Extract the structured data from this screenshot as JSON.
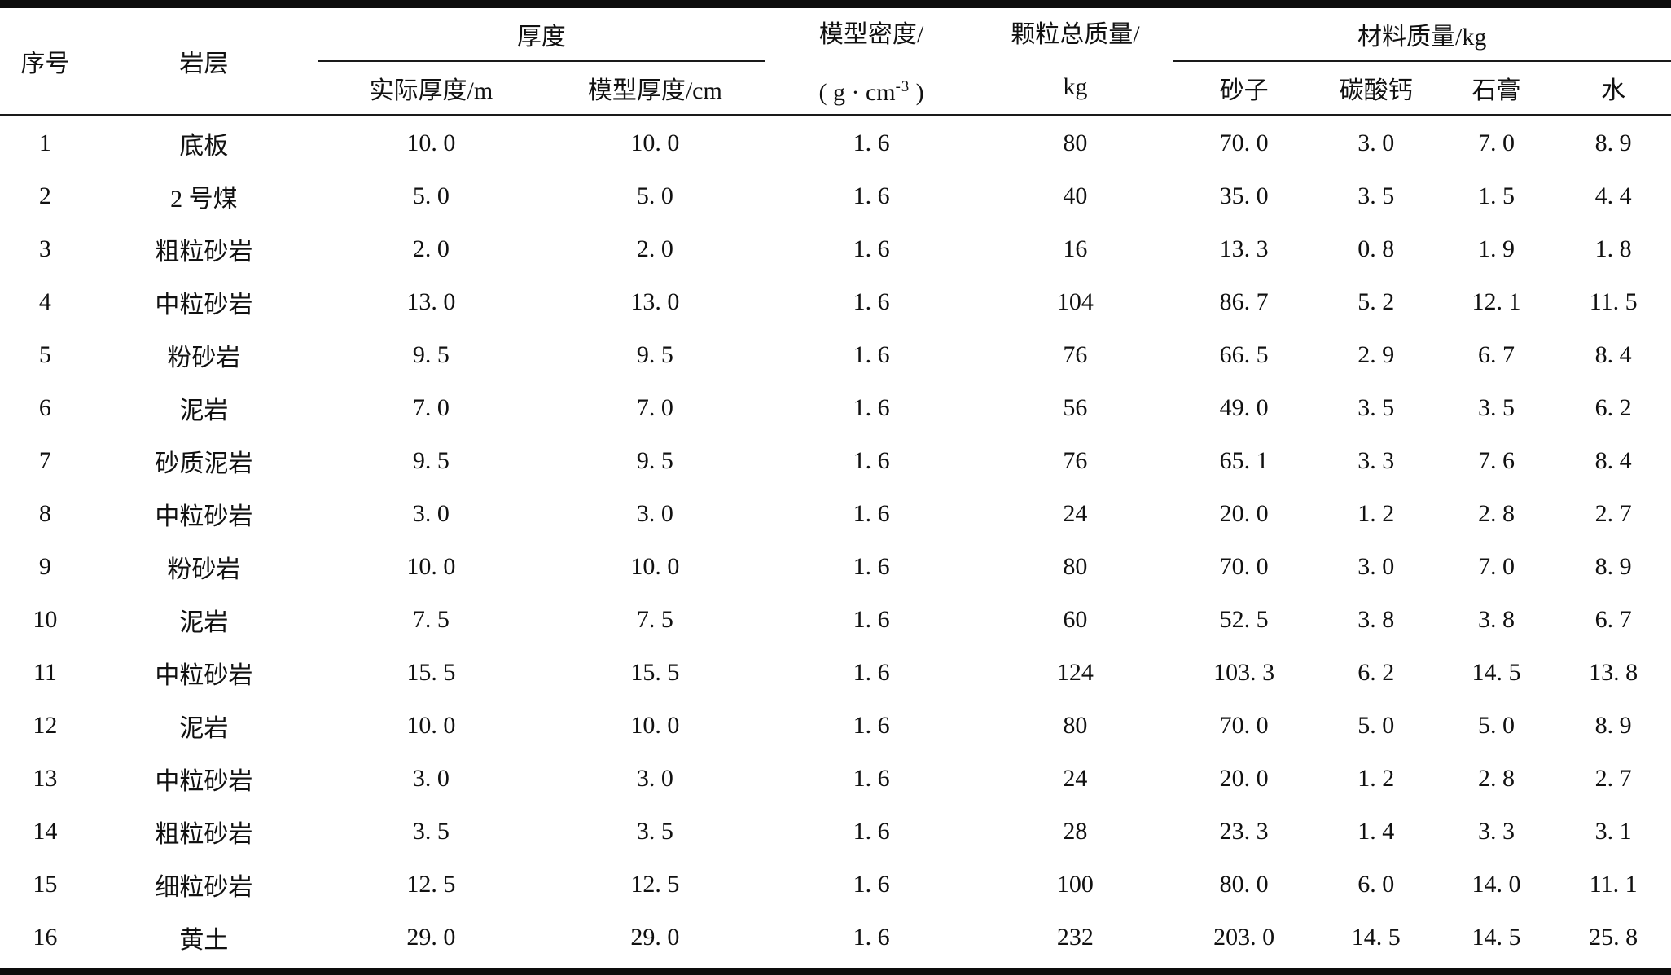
{
  "table": {
    "headers": {
      "index": "序号",
      "rock_layer": "岩层",
      "thickness_group": "厚度",
      "actual_thickness": "实际厚度/m",
      "model_thickness": "模型厚度/cm",
      "model_density_line1": "模型密度/",
      "model_density_unit_prefix": "( g · cm",
      "model_density_unit_sup": "-3",
      "model_density_unit_suffix": " )",
      "total_particle_mass_line1": "颗粒总质量/",
      "total_particle_mass_line2": "kg",
      "material_mass_group": "材料质量/kg",
      "sand": "砂子",
      "calcium_carbonate": "碳酸钙",
      "gypsum": "石膏",
      "water": "水"
    },
    "rows": [
      [
        "1",
        "底板",
        "10. 0",
        "10. 0",
        "1. 6",
        "80",
        "70. 0",
        "3. 0",
        "7. 0",
        "8. 9"
      ],
      [
        "2",
        "2 号煤",
        "5. 0",
        "5. 0",
        "1. 6",
        "40",
        "35. 0",
        "3. 5",
        "1. 5",
        "4. 4"
      ],
      [
        "3",
        "粗粒砂岩",
        "2. 0",
        "2. 0",
        "1. 6",
        "16",
        "13. 3",
        "0. 8",
        "1. 9",
        "1. 8"
      ],
      [
        "4",
        "中粒砂岩",
        "13. 0",
        "13. 0",
        "1. 6",
        "104",
        "86. 7",
        "5. 2",
        "12. 1",
        "11. 5"
      ],
      [
        "5",
        "粉砂岩",
        "9. 5",
        "9. 5",
        "1. 6",
        "76",
        "66. 5",
        "2. 9",
        "6. 7",
        "8. 4"
      ],
      [
        "6",
        "泥岩",
        "7. 0",
        "7. 0",
        "1. 6",
        "56",
        "49. 0",
        "3. 5",
        "3. 5",
        "6. 2"
      ],
      [
        "7",
        "砂质泥岩",
        "9. 5",
        "9. 5",
        "1. 6",
        "76",
        "65. 1",
        "3. 3",
        "7. 6",
        "8. 4"
      ],
      [
        "8",
        "中粒砂岩",
        "3. 0",
        "3. 0",
        "1. 6",
        "24",
        "20. 0",
        "1. 2",
        "2. 8",
        "2. 7"
      ],
      [
        "9",
        "粉砂岩",
        "10. 0",
        "10. 0",
        "1. 6",
        "80",
        "70. 0",
        "3. 0",
        "7. 0",
        "8. 9"
      ],
      [
        "10",
        "泥岩",
        "7. 5",
        "7. 5",
        "1. 6",
        "60",
        "52. 5",
        "3. 8",
        "3. 8",
        "6. 7"
      ],
      [
        "11",
        "中粒砂岩",
        "15. 5",
        "15. 5",
        "1. 6",
        "124",
        "103. 3",
        "6. 2",
        "14. 5",
        "13. 8"
      ],
      [
        "12",
        "泥岩",
        "10. 0",
        "10. 0",
        "1. 6",
        "80",
        "70. 0",
        "5. 0",
        "5. 0",
        "8. 9"
      ],
      [
        "13",
        "中粒砂岩",
        "3. 0",
        "3. 0",
        "1. 6",
        "24",
        "20. 0",
        "1. 2",
        "2. 8",
        "2. 7"
      ],
      [
        "14",
        "粗粒砂岩",
        "3. 5",
        "3. 5",
        "1. 6",
        "28",
        "23. 3",
        "1. 4",
        "3. 3",
        "3. 1"
      ],
      [
        "15",
        "细粒砂岩",
        "12. 5",
        "12. 5",
        "1. 6",
        "100",
        "80. 0",
        "6. 0",
        "14. 0",
        "11. 1"
      ],
      [
        "16",
        "黄土",
        "29. 0",
        "29. 0",
        "1. 6",
        "232",
        "203. 0",
        "14. 5",
        "14. 5",
        "25. 8"
      ]
    ]
  }
}
